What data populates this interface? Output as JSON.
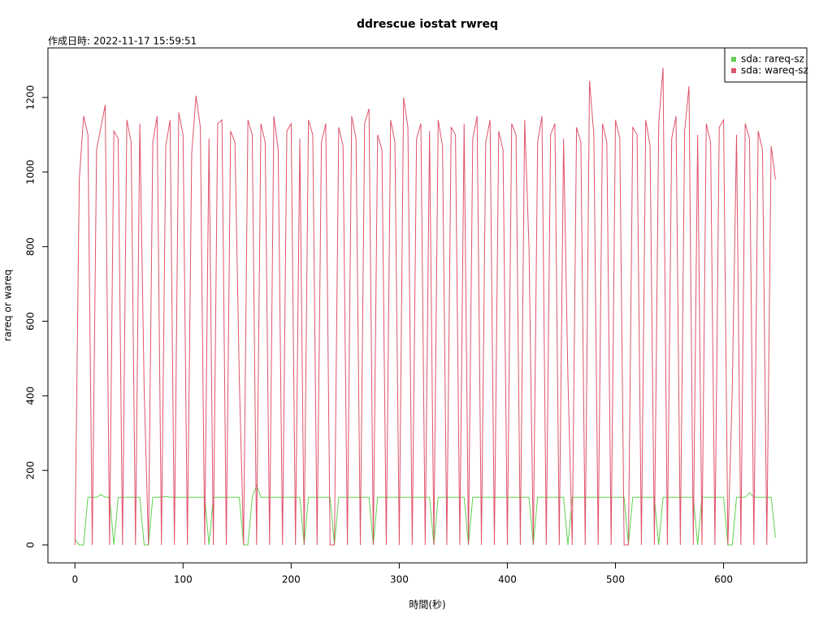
{
  "chart_data": {
    "type": "line",
    "title": "ddrescue iostat rwreq",
    "subtitle": "作成日時: 2022-11-17 15:59:51",
    "x_label": "時間(秒)",
    "y_label": "rareq or wareq",
    "x": [
      0,
      4,
      8,
      12,
      16,
      20,
      24,
      28,
      32,
      36,
      40,
      44,
      48,
      52,
      56,
      60,
      64,
      68,
      72,
      76,
      80,
      84,
      88,
      92,
      96,
      100,
      104,
      108,
      112,
      116,
      120,
      124,
      128,
      132,
      136,
      140,
      144,
      148,
      152,
      156,
      160,
      164,
      168,
      172,
      176,
      180,
      184,
      188,
      192,
      196,
      200,
      204,
      208,
      212,
      216,
      220,
      224,
      228,
      232,
      236,
      240,
      244,
      248,
      252,
      256,
      260,
      264,
      268,
      272,
      276,
      280,
      284,
      288,
      292,
      296,
      300,
      304,
      308,
      312,
      316,
      320,
      324,
      328,
      332,
      336,
      340,
      344,
      348,
      352,
      356,
      360,
      364,
      368,
      372,
      376,
      380,
      384,
      388,
      392,
      396,
      400,
      404,
      408,
      412,
      416,
      420,
      424,
      428,
      432,
      436,
      440,
      444,
      448,
      452,
      456,
      460,
      464,
      468,
      472,
      476,
      480,
      484,
      488,
      492,
      496,
      500,
      504,
      508,
      512,
      516,
      520,
      524,
      528,
      532,
      536,
      540,
      544,
      548,
      552,
      556,
      560,
      564,
      568,
      572,
      576,
      580,
      584,
      588,
      592,
      596,
      600,
      604,
      608,
      612,
      616,
      620,
      624,
      628,
      632,
      636,
      640,
      644,
      648
    ],
    "series": [
      {
        "name": "sda: rareq-sz",
        "color": "#61d04f",
        "values": [
          15,
          0,
          0,
          128,
          128,
          128,
          135,
          128,
          128,
          0,
          128,
          128,
          128,
          128,
          128,
          128,
          0,
          0,
          128,
          128,
          128,
          130,
          128,
          128,
          128,
          128,
          128,
          128,
          128,
          128,
          128,
          0,
          128,
          128,
          128,
          128,
          128,
          128,
          128,
          0,
          0,
          128,
          160,
          128,
          128,
          128,
          128,
          128,
          128,
          128,
          128,
          128,
          128,
          0,
          128,
          128,
          128,
          128,
          128,
          128,
          0,
          128,
          128,
          128,
          128,
          128,
          128,
          128,
          128,
          0,
          128,
          128,
          128,
          128,
          128,
          128,
          128,
          128,
          128,
          128,
          128,
          128,
          128,
          0,
          128,
          128,
          128,
          128,
          128,
          128,
          128,
          0,
          128,
          128,
          128,
          128,
          128,
          128,
          128,
          128,
          128,
          128,
          128,
          128,
          128,
          128,
          0,
          128,
          128,
          128,
          128,
          128,
          128,
          128,
          0,
          128,
          128,
          128,
          128,
          128,
          128,
          128,
          128,
          128,
          128,
          128,
          128,
          128,
          0,
          128,
          128,
          128,
          128,
          128,
          128,
          0,
          128,
          128,
          128,
          128,
          128,
          128,
          128,
          128,
          0,
          128,
          128,
          128,
          128,
          128,
          128,
          0,
          0,
          128,
          128,
          128,
          140,
          128,
          128,
          128,
          128,
          128,
          20
        ]
      },
      {
        "name": "sda: wareq-sz",
        "color": "#df536b",
        "values": [
          0,
          980,
          1150,
          1100,
          0,
          1060,
          1120,
          1180,
          0,
          1110,
          1090,
          0,
          1140,
          1080,
          0,
          1130,
          420,
          0,
          1080,
          1150,
          0,
          1070,
          1140,
          0,
          1160,
          1100,
          0,
          1050,
          1205,
          1120,
          0,
          1090,
          0,
          1130,
          1140,
          0,
          1110,
          1080,
          450,
          0,
          1140,
          1100,
          0,
          1130,
          1080,
          0,
          1150,
          1060,
          0,
          1110,
          1130,
          0,
          1090,
          0,
          1140,
          1100,
          0,
          1080,
          1130,
          0,
          0,
          1120,
          1070,
          0,
          1150,
          1090,
          0,
          1130,
          1170,
          0,
          1100,
          1060,
          0,
          1140,
          1080,
          0,
          1200,
          1120,
          0,
          1090,
          1130,
          0,
          1110,
          0,
          1140,
          1070,
          0,
          1120,
          1100,
          0,
          1130,
          0,
          1090,
          1150,
          0,
          1080,
          1140,
          0,
          1110,
          1060,
          0,
          1130,
          1100,
          0,
          1140,
          800,
          0,
          1080,
          1150,
          0,
          1100,
          1130,
          0,
          1090,
          450,
          0,
          1120,
          1080,
          0,
          1245,
          1100,
          0,
          1130,
          1080,
          0,
          1140,
          1090,
          0,
          0,
          1120,
          1100,
          0,
          1140,
          1070,
          0,
          1130,
          1280,
          0,
          1090,
          1150,
          0,
          1110,
          1230,
          0,
          1100,
          0,
          1130,
          1080,
          0,
          1120,
          1140,
          0,
          410,
          1100,
          0,
          1130,
          1090,
          0,
          1110,
          1060,
          0,
          1070,
          980
        ]
      }
    ],
    "xlim": [
      -25,
      677
    ],
    "ylim": [
      -48,
      1333
    ],
    "xticks": [
      0,
      100,
      200,
      300,
      400,
      500,
      600
    ],
    "yticks": [
      0,
      200,
      400,
      600,
      800,
      1000,
      1200
    ],
    "legend": "top-right"
  }
}
